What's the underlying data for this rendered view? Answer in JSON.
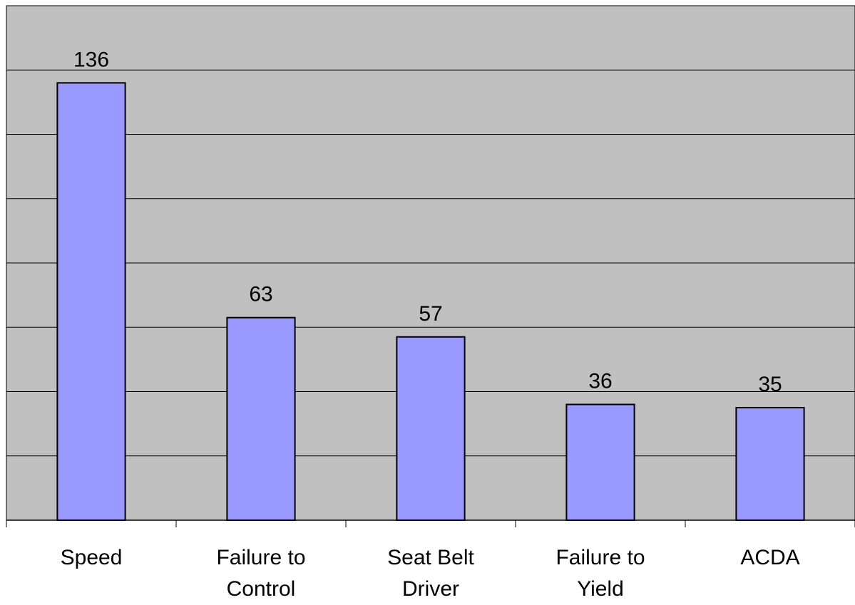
{
  "chart_data": {
    "type": "bar",
    "categories": [
      [
        "Speed"
      ],
      [
        "Failure to",
        "Control"
      ],
      [
        "Seat Belt",
        "Driver"
      ],
      [
        "Failure to",
        "Yield"
      ],
      [
        "ACDA"
      ]
    ],
    "values": [
      136,
      63,
      57,
      36,
      35
    ],
    "data_labels": [
      "136",
      "63",
      "57",
      "36",
      "35"
    ],
    "title": "",
    "xlabel": "",
    "ylabel": "",
    "ylim": [
      0,
      160
    ],
    "y_gridline_step": 20,
    "grid": true,
    "legend": "none",
    "colors": {
      "plot_background": "#c0c0c0",
      "bar_fill": "#9999ff",
      "bar_stroke": "#000000",
      "gridline": "#000000",
      "text": "#000000"
    }
  }
}
